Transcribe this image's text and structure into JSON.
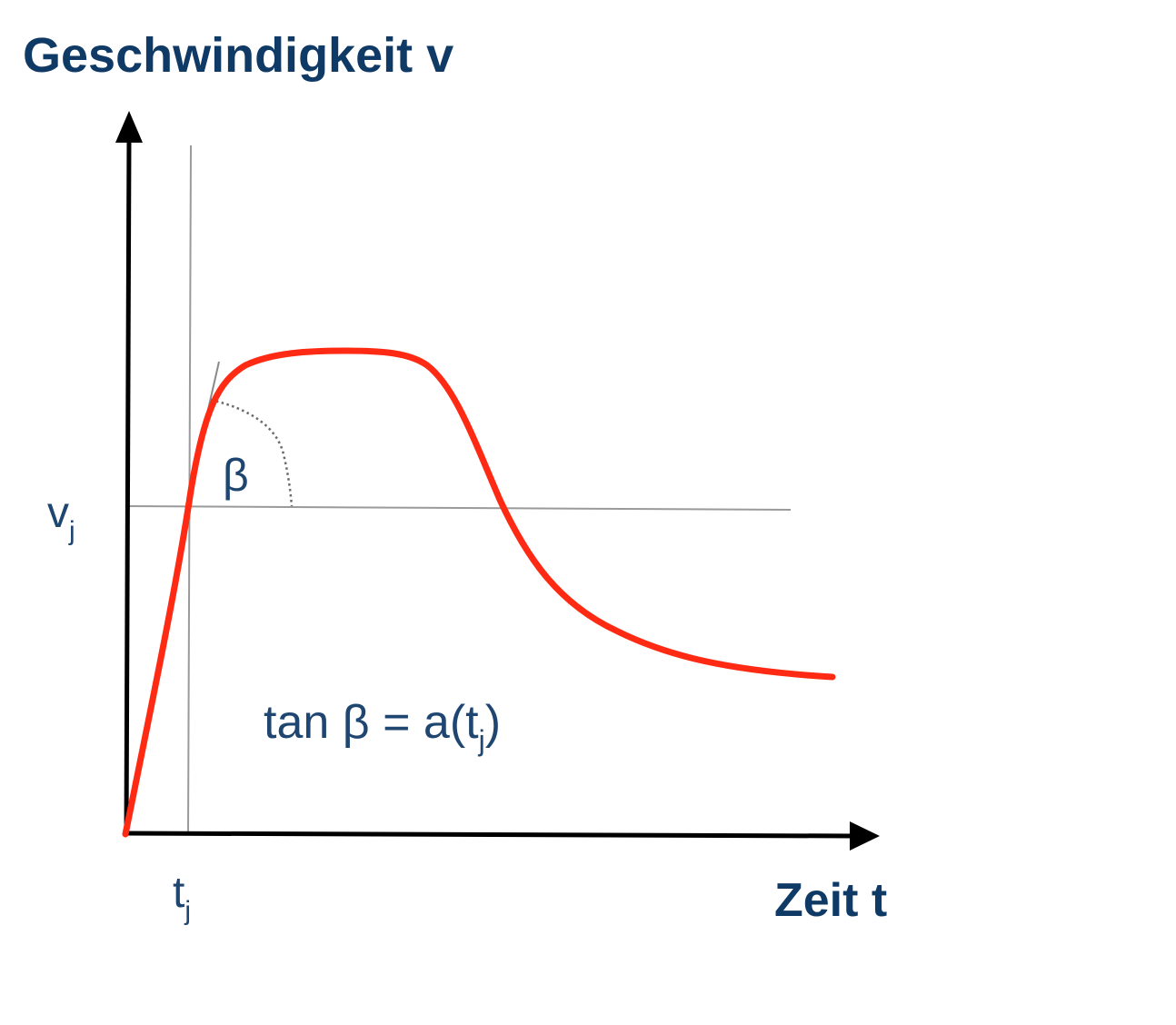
{
  "y_axis_title": "Geschwindigkeit v",
  "x_axis_title": "Zeit t",
  "v_label": {
    "main": "v",
    "sub": "j"
  },
  "t_label": {
    "main": "t",
    "sub": "j"
  },
  "angle_label": "β",
  "formula": {
    "pre": "tan β = a(t",
    "sub": "j",
    "post": ")"
  },
  "colors": {
    "curve": "#ff2a14",
    "axes": "#000000",
    "guides": "#9a9a9a",
    "title": "#103a66",
    "labels": "#1f4670"
  }
}
